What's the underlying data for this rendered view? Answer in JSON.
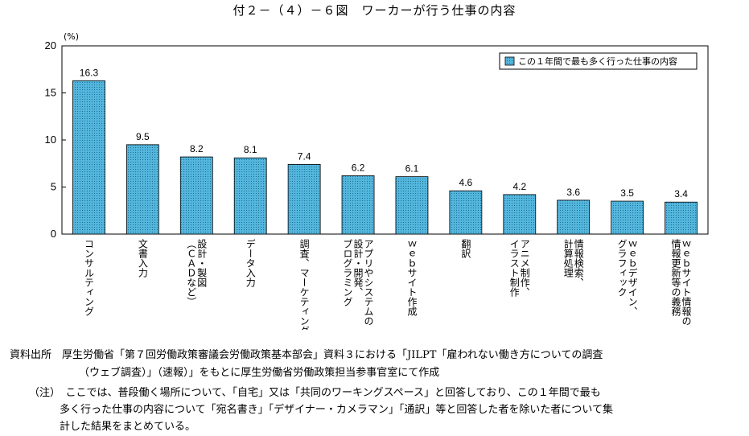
{
  "title": "付２－（４）－６図　ワーカーが行う仕事の内容",
  "chart_data": {
    "type": "bar",
    "y_unit": "(%)",
    "ylim": [
      0,
      20
    ],
    "yticks": [
      0,
      5,
      10,
      15,
      20
    ],
    "legend": "この１年間で最も多く行った仕事の内容",
    "legend_position": "top-right",
    "bar_color": "#4fb3d9",
    "categories": [
      "コンサルティング",
      "文書入力",
      "設計・製図（ＣＡＤなど）",
      "データ入力",
      "調査、マーケティング",
      "アプリやシステムの設計・開発、プログラミング",
      "ｗｅｂサイト作成",
      "翻訳",
      "アニメ制作、イラスト制作",
      "情報検索、計算処理",
      "ｗｅｂデザイン、グラフィック",
      "ｗｅｂサイト情報の情報更新等の義務"
    ],
    "category_lines": [
      [
        "コンサルティング"
      ],
      [
        "文書入力"
      ],
      [
        "設計・製図",
        "（ＣＡＤなど）"
      ],
      [
        "データ入力"
      ],
      [
        "調査、マーケティング"
      ],
      [
        "アプリやシステムの",
        "設計・開発、",
        "プログラミング"
      ],
      [
        "ｗｅｂサイト作成"
      ],
      [
        "翻訳"
      ],
      [
        "アニメ制作、",
        "イラスト制作"
      ],
      [
        "情報検索、",
        "計算処理"
      ],
      [
        "ｗｅｂデザイン、",
        "グラフィック"
      ],
      [
        "ｗｅｂサイト情報の",
        "情報更新等の義務"
      ]
    ],
    "values": [
      16.3,
      9.5,
      8.2,
      8.1,
      7.4,
      6.2,
      6.1,
      4.6,
      4.2,
      3.6,
      3.5,
      3.4
    ],
    "value_labels": [
      "16.3",
      "9.5",
      "8.2",
      "8.1",
      "7.4",
      "6.2",
      "6.1",
      "4.6",
      "4.2",
      "3.6",
      "3.5",
      "3.4"
    ]
  },
  "notes": {
    "source_line1": "資料出所　厚生労働省「第７回労働政策審議会労働政策基本部会」資料３における「JILPT「雇われない働き方についての調査",
    "source_line2": "（ウェブ調査）」（速報）」をもとに厚生労働省労働政策担当参事官室にて作成",
    "note_line1": "（注）　ここでは、普段働く場所について、「自宅」又は「共同のワーキングスペース」と回答しており、この１年間で最も",
    "note_line2": "多く行った仕事の内容について「宛名書き」「デザイナー・カメラマン」「通訳」等と回答した者を除いた者について集",
    "note_line3": "計した結果をまとめている。"
  }
}
